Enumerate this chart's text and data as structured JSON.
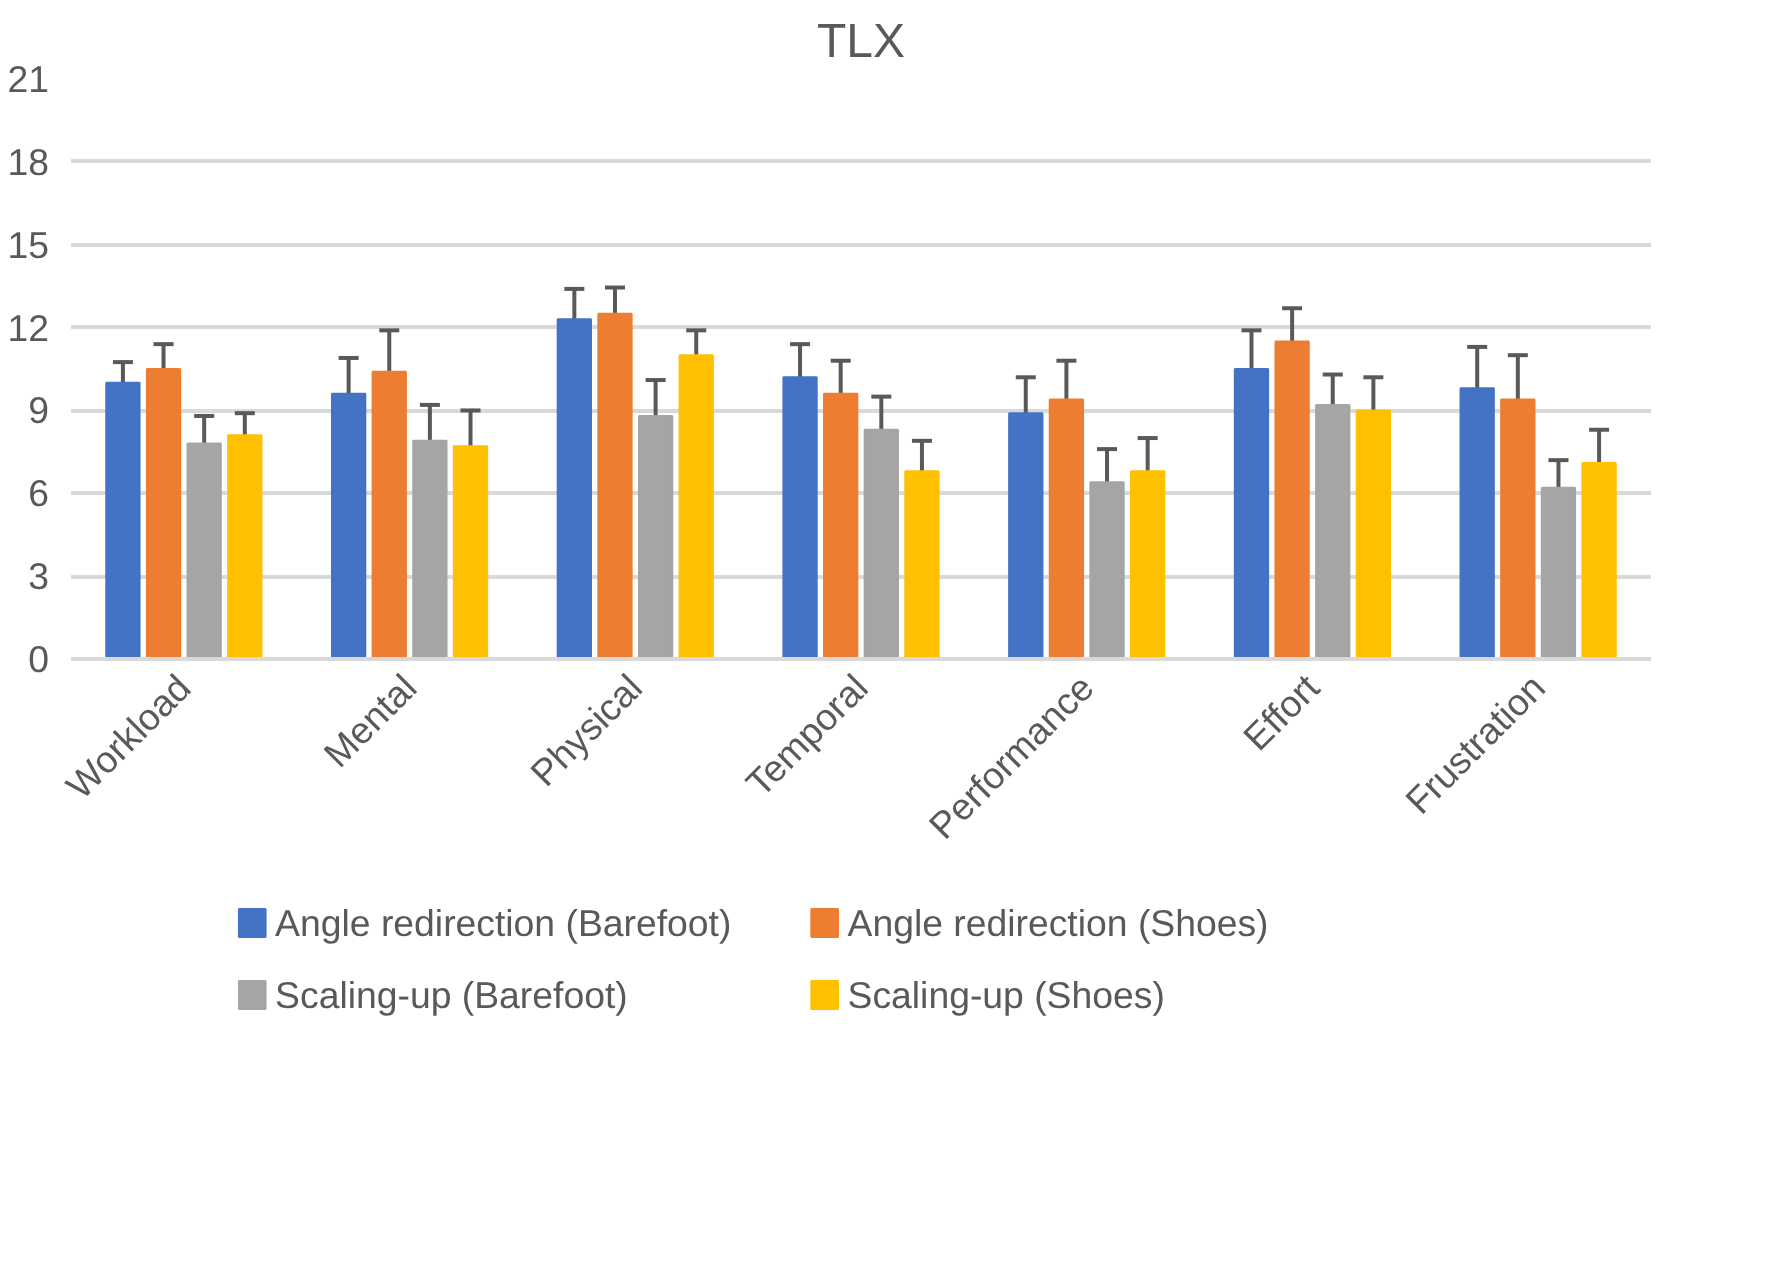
{
  "chart_data": {
    "type": "bar",
    "title": "TLX",
    "categories": [
      "Workload",
      "Mental",
      "Physical",
      "Temporal",
      "Performance",
      "Effort",
      "Frustration"
    ],
    "series": [
      {
        "name": "Angle redirection (Barefoot)",
        "color": "#4472c4",
        "values": [
          10.0,
          9.6,
          12.3,
          10.2,
          8.9,
          10.5,
          9.8
        ],
        "errors": [
          0.75,
          1.3,
          1.1,
          1.2,
          1.3,
          1.4,
          1.5
        ]
      },
      {
        "name": "Angle redirection (Shoes)",
        "color": "#ed7d31",
        "values": [
          10.5,
          10.4,
          12.5,
          9.6,
          9.4,
          11.5,
          9.4
        ],
        "errors": [
          0.9,
          1.5,
          0.95,
          1.2,
          1.4,
          1.2,
          1.6
        ]
      },
      {
        "name": "Scaling-up (Barefoot)",
        "color": "#a5a5a5",
        "values": [
          7.8,
          7.9,
          8.8,
          8.3,
          6.4,
          9.2,
          6.2
        ],
        "errors": [
          1.0,
          1.3,
          1.3,
          1.2,
          1.2,
          1.1,
          1.0
        ]
      },
      {
        "name": "Scaling-up (Shoes)",
        "color": "#ffc000",
        "values": [
          8.1,
          7.7,
          11.0,
          6.8,
          6.8,
          9.0,
          7.1
        ],
        "errors": [
          0.8,
          1.3,
          0.9,
          1.1,
          1.2,
          1.2,
          1.2
        ]
      }
    ],
    "ylim": [
      0,
      21
    ],
    "yticks": [
      0,
      3,
      6,
      9,
      12,
      15,
      18,
      21
    ],
    "grid": "y",
    "legend": "bottom"
  }
}
